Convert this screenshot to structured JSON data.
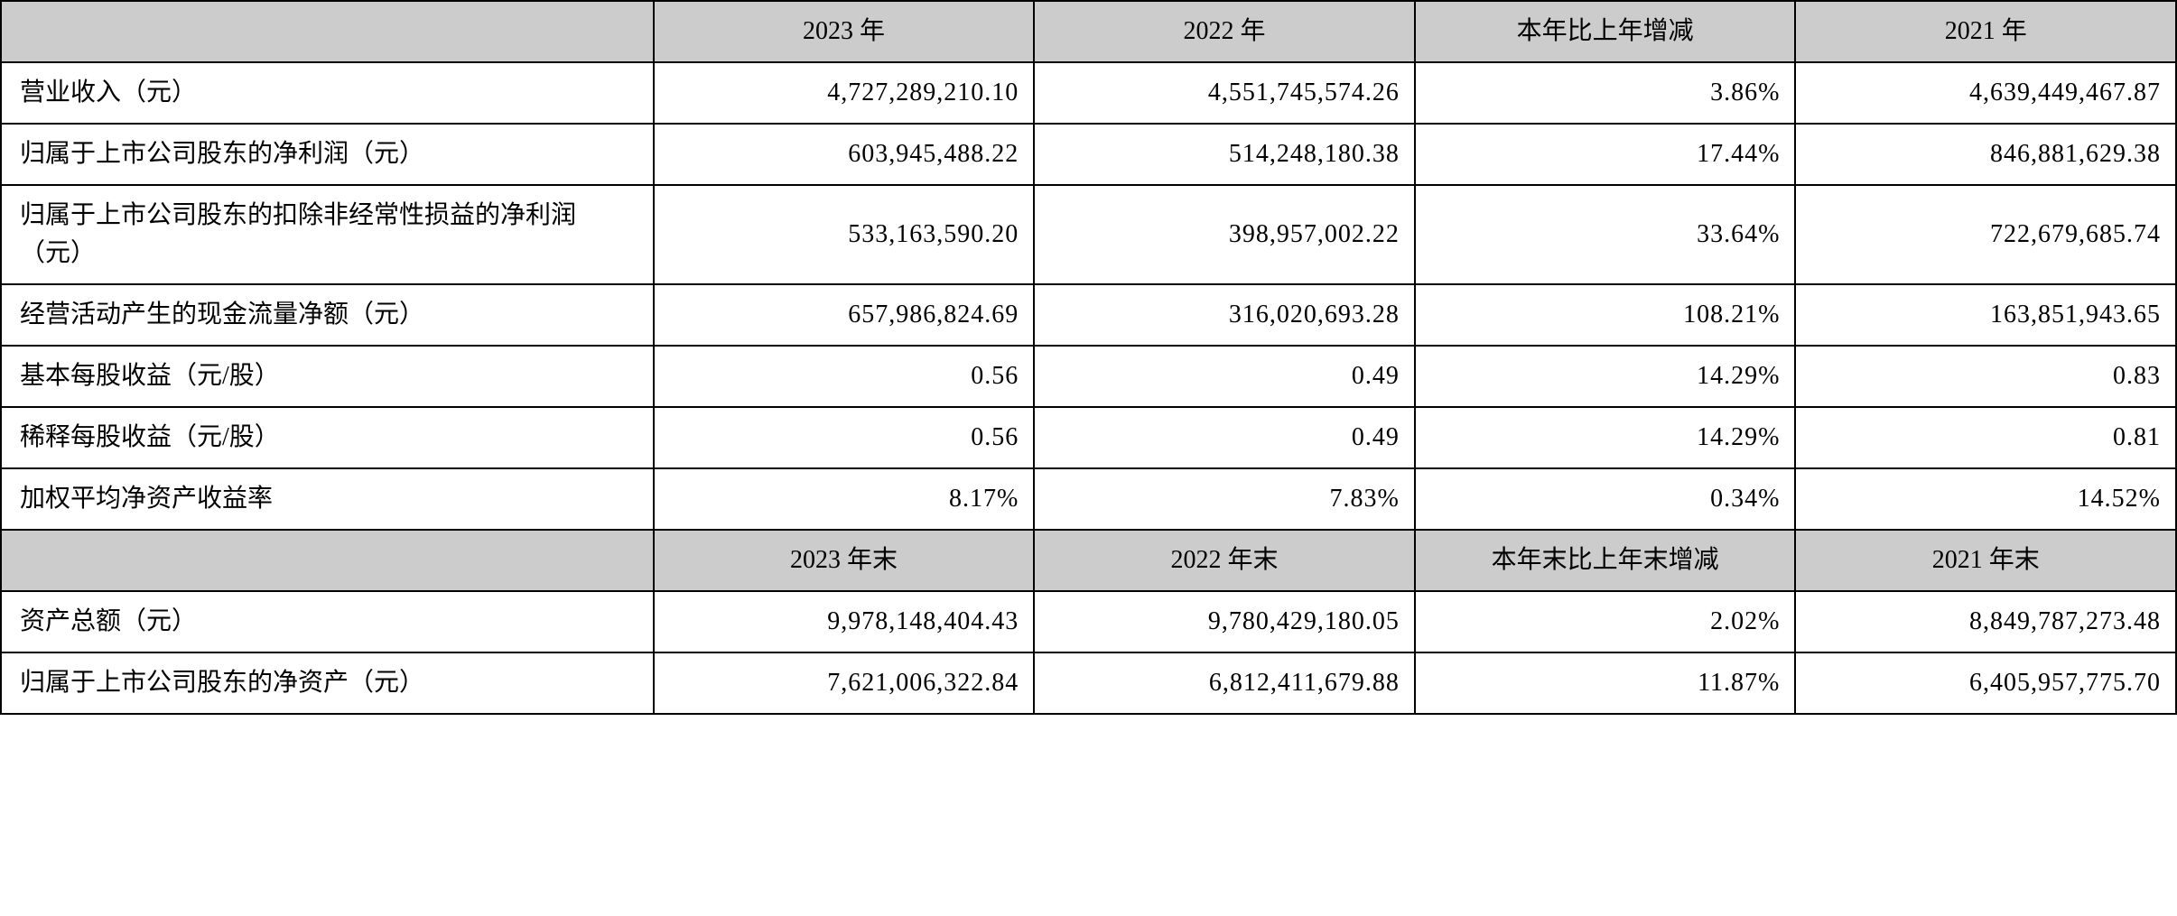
{
  "table": {
    "columns_widths": [
      "30%",
      "17.5%",
      "17.5%",
      "17.5%",
      "17.5%"
    ],
    "header_bg": "#cccccc",
    "body_bg": "#ffffff",
    "border_color": "#000000",
    "font_size": 28,
    "header1": {
      "blank": "",
      "col1": "2023 年",
      "col2": "2022 年",
      "col3": "本年比上年增减",
      "col4": "2021 年"
    },
    "rows1": [
      {
        "label": "营业收入（元）",
        "v1": "4,727,289,210.10",
        "v2": "4,551,745,574.26",
        "v3": "3.86%",
        "v4": "4,639,449,467.87"
      },
      {
        "label": "归属于上市公司股东的净利润（元）",
        "v1": "603,945,488.22",
        "v2": "514,248,180.38",
        "v3": "17.44%",
        "v4": "846,881,629.38"
      },
      {
        "label": "归属于上市公司股东的扣除非经常性损益的净利润（元）",
        "v1": "533,163,590.20",
        "v2": "398,957,002.22",
        "v3": "33.64%",
        "v4": "722,679,685.74"
      },
      {
        "label": "经营活动产生的现金流量净额（元）",
        "v1": "657,986,824.69",
        "v2": "316,020,693.28",
        "v3": "108.21%",
        "v4": "163,851,943.65"
      },
      {
        "label": "基本每股收益（元/股）",
        "v1": "0.56",
        "v2": "0.49",
        "v3": "14.29%",
        "v4": "0.83"
      },
      {
        "label": "稀释每股收益（元/股）",
        "v1": "0.56",
        "v2": "0.49",
        "v3": "14.29%",
        "v4": "0.81"
      },
      {
        "label": "加权平均净资产收益率",
        "v1": "8.17%",
        "v2": "7.83%",
        "v3": "0.34%",
        "v4": "14.52%"
      }
    ],
    "header2": {
      "blank": "",
      "col1": "2023 年末",
      "col2": "2022 年末",
      "col3": "本年末比上年末增减",
      "col4": "2021 年末"
    },
    "rows2": [
      {
        "label": "资产总额（元）",
        "v1": "9,978,148,404.43",
        "v2": "9,780,429,180.05",
        "v3": "2.02%",
        "v4": "8,849,787,273.48"
      },
      {
        "label": "归属于上市公司股东的净资产（元）",
        "v1": "7,621,006,322.84",
        "v2": "6,812,411,679.88",
        "v3": "11.87%",
        "v4": "6,405,957,775.70"
      }
    ]
  }
}
